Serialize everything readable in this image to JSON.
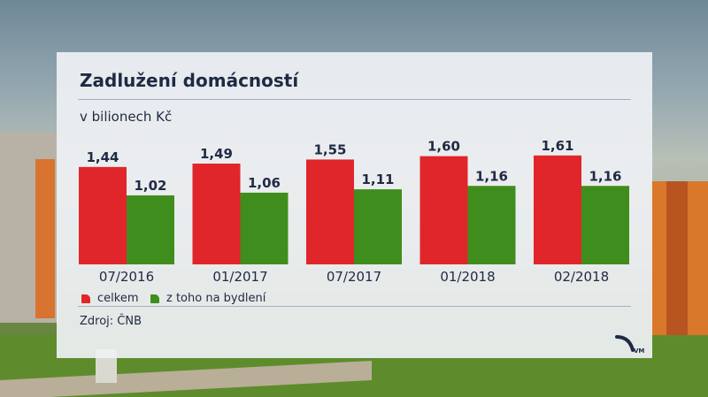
{
  "title": "Zadlužení domácností",
  "subtitle": "v bilionech Kč",
  "source": "Zdroj: ČNB",
  "logo_text": "VM",
  "colors": {
    "celkem": "#e0262b",
    "bydleni": "#3f8e1d",
    "text": "#1f2a44"
  },
  "chart_data": {
    "type": "bar",
    "title": "Zadlužení domácností",
    "ylabel": "v bilionech Kč",
    "categories": [
      "07/2016",
      "01/2017",
      "07/2017",
      "01/2018",
      "02/2018"
    ],
    "series": [
      {
        "name": "celkem",
        "values": [
          1.44,
          1.49,
          1.55,
          1.6,
          1.61
        ],
        "labels": [
          "1,44",
          "1,49",
          "1,55",
          "1,60",
          "1,61"
        ]
      },
      {
        "name": "z toho na bydlení",
        "values": [
          1.02,
          1.06,
          1.11,
          1.16,
          1.16
        ],
        "labels": [
          "1,02",
          "1,06",
          "1,11",
          "1,16",
          "1,16"
        ]
      }
    ],
    "legend_position": "bottom-left",
    "grid": false
  }
}
